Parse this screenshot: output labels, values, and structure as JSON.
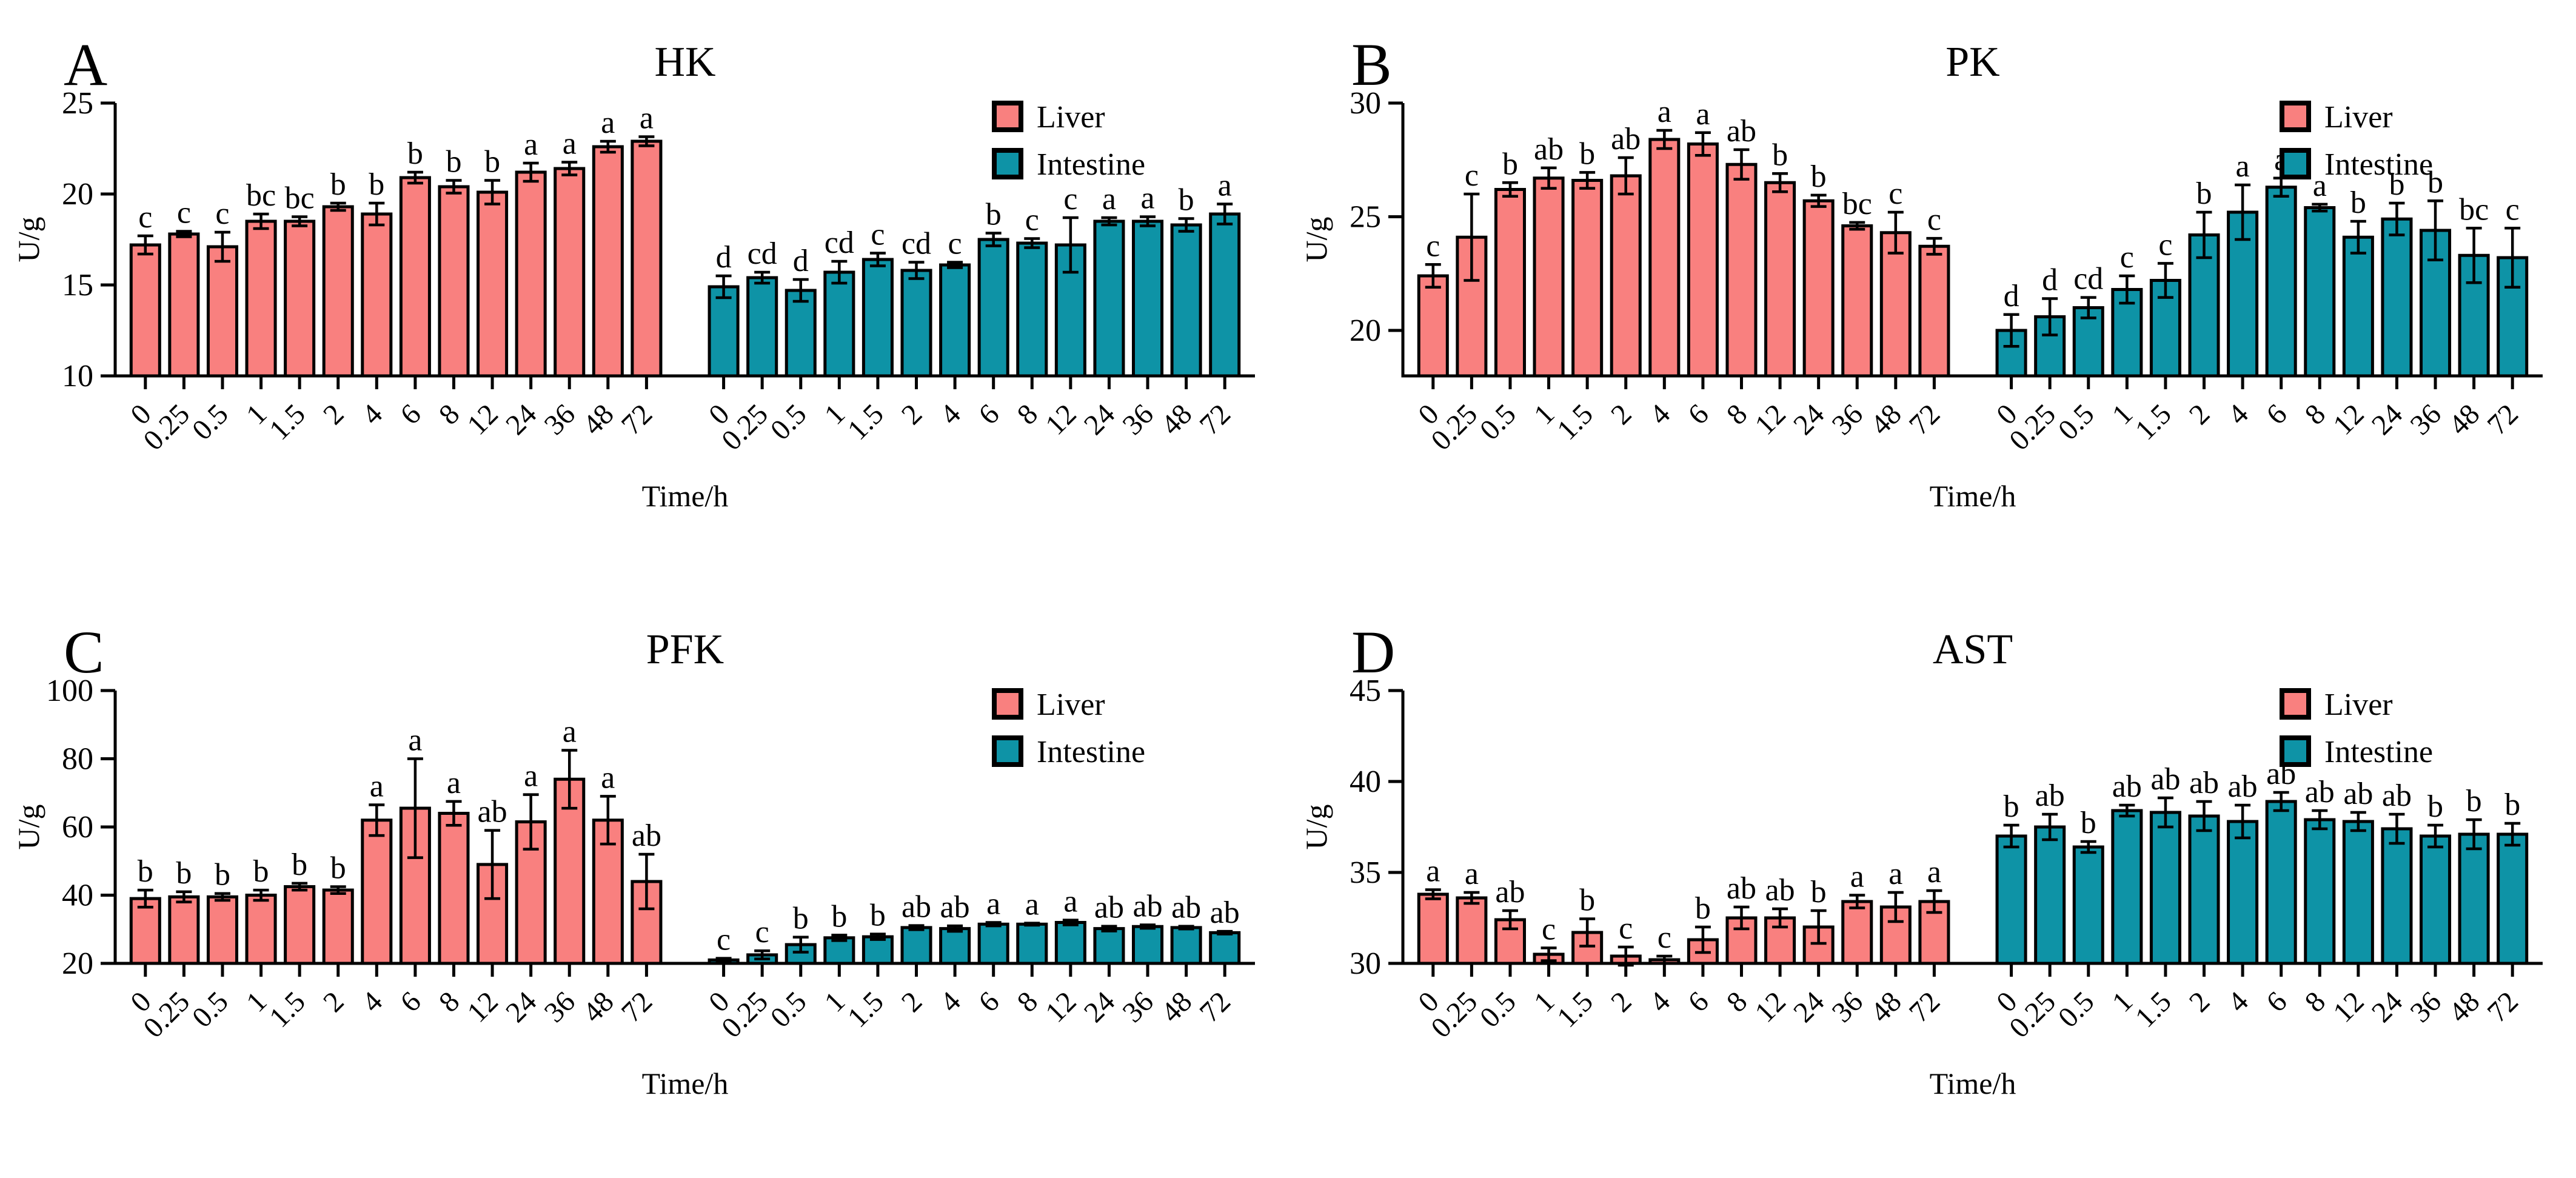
{
  "figure": {
    "background": "#FFFFFF",
    "axis_color": "#000000",
    "legend": {
      "position": "top-right",
      "items": [
        {
          "label": "Liver",
          "color": "#F9807F"
        },
        {
          "label": "Intestine",
          "color": "#0E93A6"
        }
      ]
    }
  },
  "chart_data": [
    {
      "type": "bar",
      "panel": "A",
      "title": "HK",
      "xlabel": "Time/h",
      "ylabel": "U/g",
      "ylim": [
        10,
        25
      ],
      "yticks": [
        10,
        15,
        20,
        25
      ],
      "grid": false,
      "legend_position": "top-right",
      "categories": [
        "0",
        "0.25",
        "0.5",
        "1",
        "1.5",
        "2",
        "4",
        "6",
        "8",
        "12",
        "24",
        "36",
        "48",
        "72"
      ],
      "series": [
        {
          "name": "Liver",
          "color": "#F9807F",
          "values": [
            17.2,
            17.8,
            17.1,
            18.5,
            18.5,
            19.3,
            18.9,
            20.9,
            20.4,
            20.1,
            21.2,
            21.4,
            22.6,
            22.9
          ],
          "errors": [
            0.5,
            0.15,
            0.8,
            0.4,
            0.25,
            0.2,
            0.6,
            0.3,
            0.35,
            0.65,
            0.5,
            0.35,
            0.3,
            0.25
          ],
          "letters": [
            "c",
            "c",
            "c",
            "bc",
            "bc",
            "b",
            "b",
            "b",
            "b",
            "b",
            "a",
            "a",
            "a",
            "a"
          ]
        },
        {
          "name": "Intestine",
          "color": "#0E93A6",
          "values": [
            14.9,
            15.4,
            14.7,
            15.7,
            16.4,
            15.8,
            16.1,
            17.5,
            17.3,
            17.2,
            18.5,
            18.5,
            18.3,
            18.9
          ],
          "errors": [
            0.6,
            0.3,
            0.6,
            0.6,
            0.35,
            0.45,
            0.15,
            0.35,
            0.25,
            1.5,
            0.2,
            0.25,
            0.35,
            0.55
          ],
          "letters": [
            "d",
            "cd",
            "d",
            "cd",
            "c",
            "cd",
            "c",
            "b",
            "c",
            "c",
            "a",
            "a",
            "b",
            "a"
          ]
        }
      ]
    },
    {
      "type": "bar",
      "panel": "B",
      "title": "PK",
      "xlabel": "Time/h",
      "ylabel": "U/g",
      "ylim": [
        18,
        30
      ],
      "yticks": [
        20,
        25,
        30
      ],
      "grid": false,
      "legend_position": "top-right",
      "categories": [
        "0",
        "0.25",
        "0.5",
        "1",
        "1.5",
        "2",
        "4",
        "6",
        "8",
        "12",
        "24",
        "36",
        "48",
        "72"
      ],
      "series": [
        {
          "name": "Liver",
          "color": "#F9807F",
          "values": [
            22.4,
            24.1,
            26.2,
            26.7,
            26.6,
            26.8,
            28.4,
            28.2,
            27.3,
            26.5,
            25.7,
            24.6,
            24.3,
            23.7
          ],
          "errors": [
            0.5,
            1.9,
            0.3,
            0.45,
            0.35,
            0.8,
            0.4,
            0.5,
            0.65,
            0.4,
            0.25,
            0.15,
            0.9,
            0.35
          ],
          "letters": [
            "c",
            "c",
            "b",
            "ab",
            "b",
            "ab",
            "a",
            "a",
            "ab",
            "b",
            "b",
            "bc",
            "c",
            "c"
          ]
        },
        {
          "name": "Intestine",
          "color": "#0E93A6",
          "values": [
            20.0,
            20.6,
            21.0,
            21.8,
            22.2,
            24.2,
            25.2,
            26.3,
            25.4,
            24.1,
            24.9,
            24.4,
            23.3,
            23.2
          ],
          "errors": [
            0.7,
            0.8,
            0.45,
            0.6,
            0.75,
            1.0,
            1.2,
            0.4,
            0.15,
            0.7,
            0.7,
            1.3,
            1.2,
            1.3
          ],
          "letters": [
            "d",
            "d",
            "cd",
            "c",
            "c",
            "b",
            "a",
            "a",
            "a",
            "b",
            "b",
            "b",
            "bc",
            "c"
          ]
        }
      ]
    },
    {
      "type": "bar",
      "panel": "C",
      "title": "PFK",
      "xlabel": "Time/h",
      "ylabel": "U/g",
      "ylim": [
        20,
        100
      ],
      "yticks": [
        20,
        40,
        60,
        80,
        100
      ],
      "grid": false,
      "legend_position": "top-right",
      "categories": [
        "0",
        "0.25",
        "0.5",
        "1",
        "1.5",
        "2",
        "4",
        "6",
        "8",
        "12",
        "24",
        "36",
        "48",
        "72"
      ],
      "series": [
        {
          "name": "Liver",
          "color": "#F9807F",
          "values": [
            39,
            39.5,
            39.5,
            40,
            42.5,
            41.5,
            62,
            65.5,
            64,
            49,
            61.5,
            74,
            62,
            44
          ],
          "errors": [
            2.5,
            1.5,
            1,
            1.5,
            1,
            1,
            4.5,
            14.5,
            3.5,
            10,
            8,
            8.5,
            7,
            8
          ],
          "letters": [
            "b",
            "b",
            "b",
            "b",
            "b",
            "b",
            "a",
            "a",
            "a",
            "ab",
            "a",
            "a",
            "a",
            "ab"
          ]
        },
        {
          "name": "Intestine",
          "color": "#0E93A6",
          "values": [
            21,
            22.5,
            25.5,
            27.5,
            27.8,
            30.5,
            30.2,
            31.5,
            31.5,
            32,
            30.2,
            30.8,
            30.5,
            29
          ],
          "errors": [
            0.5,
            1.2,
            2.2,
            0.8,
            0.8,
            0.6,
            0.8,
            0.5,
            0.3,
            0.7,
            0.7,
            0.5,
            0.4,
            0.4
          ],
          "letters": [
            "c",
            "c",
            "b",
            "b",
            "b",
            "ab",
            "ab",
            "a",
            "a",
            "a",
            "ab",
            "ab",
            "ab",
            "ab"
          ]
        }
      ]
    },
    {
      "type": "bar",
      "panel": "D",
      "title": "AST",
      "xlabel": "Time/h",
      "ylabel": "U/g",
      "ylim": [
        30,
        45
      ],
      "yticks": [
        30,
        35,
        40,
        45
      ],
      "grid": false,
      "legend_position": "top-right",
      "categories": [
        "0",
        "0.25",
        "0.5",
        "1",
        "1.5",
        "2",
        "4",
        "6",
        "8",
        "12",
        "24",
        "36",
        "48",
        "72"
      ],
      "series": [
        {
          "name": "Liver",
          "color": "#F9807F",
          "values": [
            33.8,
            33.6,
            32.4,
            30.5,
            31.7,
            30.4,
            30.2,
            31.3,
            32.5,
            32.5,
            32.0,
            33.4,
            33.1,
            33.4
          ],
          "errors": [
            0.25,
            0.3,
            0.5,
            0.35,
            0.75,
            0.5,
            0.2,
            0.7,
            0.6,
            0.5,
            0.9,
            0.35,
            0.8,
            0.6
          ],
          "letters": [
            "a",
            "a",
            "ab",
            "c",
            "b",
            "c",
            "c",
            "b",
            "ab",
            "ab",
            "b",
            "a",
            "a",
            "a"
          ]
        },
        {
          "name": "Intestine",
          "color": "#0E93A6",
          "values": [
            37.0,
            37.5,
            36.4,
            38.4,
            38.3,
            38.1,
            37.8,
            38.9,
            37.9,
            37.8,
            37.4,
            37.0,
            37.1,
            37.1
          ],
          "errors": [
            0.6,
            0.7,
            0.3,
            0.3,
            0.8,
            0.8,
            0.9,
            0.5,
            0.5,
            0.5,
            0.8,
            0.6,
            0.8,
            0.6
          ],
          "letters": [
            "b",
            "ab",
            "b",
            "ab",
            "ab",
            "ab",
            "ab",
            "ab",
            "ab",
            "ab",
            "ab",
            "b",
            "b",
            "b"
          ]
        }
      ]
    }
  ]
}
